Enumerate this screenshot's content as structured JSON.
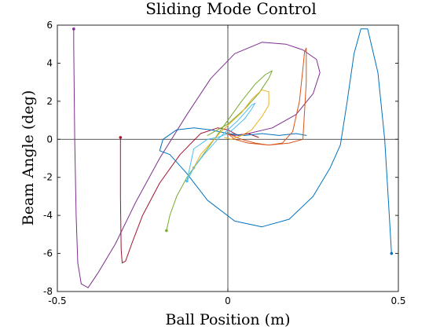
{
  "chart_data": {
    "type": "line",
    "title": "Sliding Mode Control",
    "xlabel": "Ball Position (m)",
    "ylabel": "Beam Angle (deg)",
    "xlim": [
      -0.5,
      0.5
    ],
    "ylim": [
      -8,
      6
    ],
    "xticks": [
      -0.5,
      0,
      0.5
    ],
    "xtick_labels": [
      "-0.5",
      "0",
      "0.5"
    ],
    "yticks": [
      -8,
      -6,
      -4,
      -2,
      0,
      2,
      4,
      6
    ],
    "ytick_labels": [
      "-8",
      "-6",
      "-4",
      "-2",
      "0",
      "2",
      "4",
      "6"
    ],
    "reference_lines": {
      "x": 0,
      "y": 0
    },
    "grid": false,
    "legend": "none",
    "series": [
      {
        "color": "#7e2f8e",
        "x": [
          -0.452,
          -0.452,
          -0.449,
          -0.445,
          -0.44,
          -0.43,
          -0.41,
          -0.38,
          -0.33,
          -0.27,
          -0.2,
          -0.12,
          -0.05,
          0.02,
          0.1,
          0.17,
          0.22,
          0.26,
          0.27,
          0.25,
          0.2,
          0.13,
          0.06,
          0.02,
          0.0
        ],
        "y": [
          5.8,
          5.0,
          0.0,
          -4.0,
          -6.5,
          -7.6,
          -7.8,
          -7.0,
          -5.5,
          -3.3,
          -1.0,
          1.3,
          3.2,
          4.5,
          5.1,
          5.0,
          4.7,
          4.2,
          3.5,
          2.4,
          1.3,
          0.6,
          0.3,
          0.2,
          0.3
        ]
      },
      {
        "color": "#a2142f",
        "x": [
          -0.315,
          -0.315,
          -0.313,
          -0.31,
          -0.3,
          -0.28,
          -0.25,
          -0.2,
          -0.14,
          -0.08,
          -0.03,
          0.0,
          0.03,
          0.06,
          0.09
        ],
        "y": [
          0.1,
          -3.0,
          -5.8,
          -6.5,
          -6.4,
          -5.4,
          -4.0,
          -2.3,
          -0.8,
          0.3,
          0.6,
          0.5,
          0.2,
          0.3,
          0.1
        ]
      },
      {
        "color": "#0072bd",
        "x": [
          0.48,
          0.47,
          0.46,
          0.44,
          0.41,
          0.4,
          0.39,
          0.37,
          0.35,
          0.33,
          0.3,
          0.25,
          0.18,
          0.1,
          0.02,
          -0.06,
          -0.12,
          -0.17,
          -0.2,
          -0.19,
          -0.15,
          -0.1,
          -0.05,
          0.0,
          0.05,
          0.1,
          0.15,
          0.2,
          0.23
        ],
        "y": [
          -6.0,
          -3.0,
          0.0,
          3.5,
          5.8,
          5.8,
          5.8,
          4.5,
          2.0,
          -0.3,
          -1.5,
          -3.0,
          -4.2,
          -4.6,
          -4.3,
          -3.2,
          -1.8,
          -0.8,
          -0.6,
          0.0,
          0.5,
          0.6,
          0.5,
          0.3,
          0.2,
          0.3,
          0.2,
          0.3,
          0.2
        ]
      },
      {
        "color": "#d95319",
        "x": [
          0.0,
          0.04,
          0.08,
          0.12,
          0.16,
          0.19,
          0.21,
          0.22,
          0.225,
          0.23,
          0.23,
          0.22,
          0.18,
          0.12,
          0.06,
          0.02,
          0.0
        ],
        "y": [
          0.3,
          0.0,
          -0.2,
          -0.3,
          -0.2,
          0.4,
          2.0,
          3.7,
          4.6,
          4.8,
          3.0,
          0.0,
          -0.2,
          -0.3,
          -0.2,
          0.0,
          0.3
        ]
      },
      {
        "color": "#77ac30",
        "x": [
          -0.18,
          -0.17,
          -0.15,
          -0.12,
          -0.08,
          -0.04,
          0.0,
          0.04,
          0.08,
          0.11,
          0.13,
          0.12,
          0.09,
          0.05,
          0.0,
          -0.03,
          -0.06
        ],
        "y": [
          -4.8,
          -4.0,
          -3.0,
          -2.0,
          -1.0,
          0.0,
          1.0,
          2.0,
          2.9,
          3.4,
          3.6,
          3.2,
          2.4,
          1.6,
          0.8,
          0.5,
          0.2
        ]
      },
      {
        "color": "#edb120",
        "x": [
          -0.1,
          -0.08,
          -0.05,
          -0.02,
          0.01,
          0.04,
          0.07,
          0.1,
          0.12,
          0.12,
          0.1,
          0.07,
          0.04,
          0.01,
          -0.01
        ],
        "y": [
          -1.5,
          -0.8,
          -0.2,
          0.4,
          0.9,
          1.4,
          2.1,
          2.6,
          2.5,
          1.8,
          1.2,
          0.5,
          0.2,
          0.0,
          0.1
        ]
      },
      {
        "color": "#4dbeee",
        "x": [
          -0.12,
          -0.1,
          -0.07,
          -0.03,
          0.0,
          0.03,
          0.05,
          0.07,
          0.08,
          0.07,
          0.05,
          0.02,
          0.0,
          -0.03,
          -0.06,
          -0.1,
          -0.12
        ],
        "y": [
          -2.2,
          -1.5,
          -0.8,
          0.0,
          0.5,
          1.0,
          1.4,
          1.8,
          1.9,
          1.6,
          1.1,
          0.6,
          0.3,
          0.1,
          0.0,
          -0.5,
          -2.2
        ]
      }
    ]
  }
}
